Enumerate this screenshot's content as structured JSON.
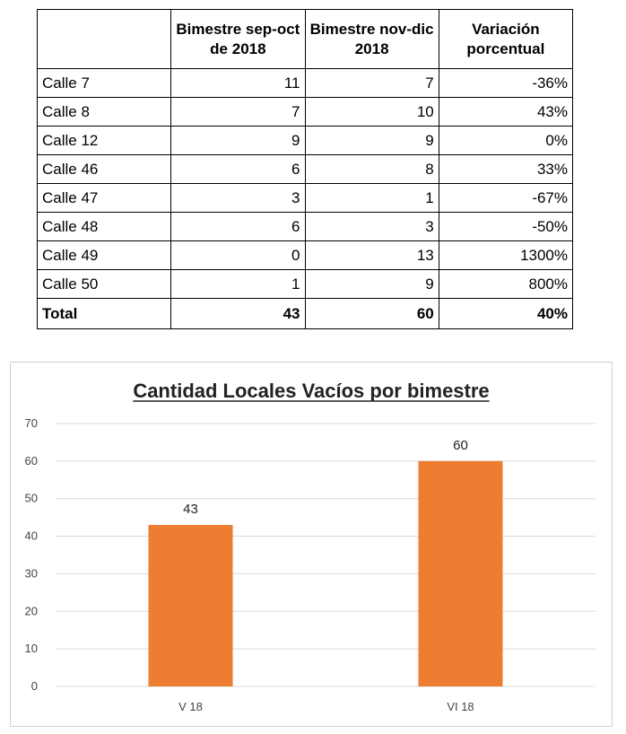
{
  "table": {
    "headers": [
      "",
      "Bimestre sep-oct de 2018",
      "Bimestre nov-dic 2018",
      "Variación porcentual"
    ],
    "rows": [
      {
        "label": "Calle 7",
        "sep_oct": "11",
        "nov_dic": "7",
        "var": "-36%"
      },
      {
        "label": "Calle 8",
        "sep_oct": "7",
        "nov_dic": "10",
        "var": "43%"
      },
      {
        "label": "Calle 12",
        "sep_oct": "9",
        "nov_dic": "9",
        "var": "0%"
      },
      {
        "label": "Calle 46",
        "sep_oct": "6",
        "nov_dic": "8",
        "var": "33%"
      },
      {
        "label": "Calle 47",
        "sep_oct": "3",
        "nov_dic": "1",
        "var": "-67%"
      },
      {
        "label": "Calle 48",
        "sep_oct": "6",
        "nov_dic": "3",
        "var": "-50%"
      },
      {
        "label": "Calle 49",
        "sep_oct": "0",
        "nov_dic": "13",
        "var": "1300%"
      },
      {
        "label": "Calle 50",
        "sep_oct": "1",
        "nov_dic": "9",
        "var": "800%"
      }
    ],
    "total": {
      "label": "Total",
      "sep_oct": "43",
      "nov_dic": "60",
      "var": "40%"
    }
  },
  "chart_data": {
    "type": "bar",
    "title": "Cantidad Locales Vacíos por bimestre",
    "categories": [
      "V 18",
      "VI 18"
    ],
    "values": [
      43,
      60
    ],
    "data_labels": [
      "43",
      "60"
    ],
    "ylim": [
      0,
      70
    ],
    "yticks": [
      0,
      10,
      20,
      30,
      40,
      50,
      60,
      70
    ],
    "xlabel": "",
    "ylabel": "",
    "grid": true,
    "legend": "none",
    "bar_color": "#ED7D31",
    "grid_color": "#D9D9D9"
  }
}
